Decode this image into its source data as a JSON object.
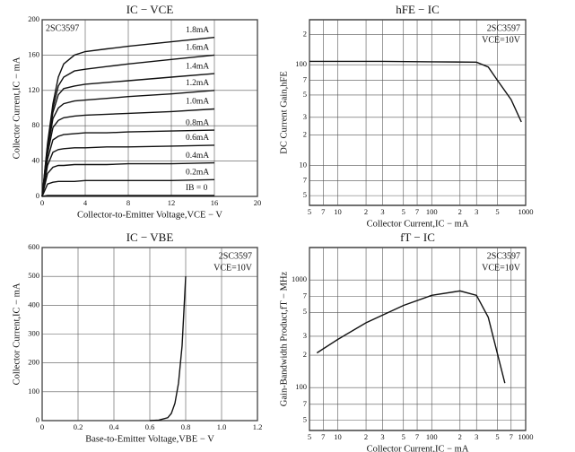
{
  "chart_data": [
    {
      "type": "line",
      "title": "IC − VCE",
      "xlabel": "Collector-to-Emitter Voltage,VCE − V",
      "ylabel": "Collector Current,IC − mA",
      "annotations": [
        "2SC3597"
      ],
      "x": [
        0,
        0.5,
        1,
        1.5,
        2,
        3,
        4,
        6,
        8,
        12,
        16
      ],
      "series": [
        {
          "name": "1.8mA",
          "color": "#111111",
          "values": [
            0,
            60,
            105,
            135,
            150,
            160,
            164,
            167,
            170,
            175,
            180
          ]
        },
        {
          "name": "1.6mA",
          "color": "#111111",
          "values": [
            0,
            58,
            100,
            125,
            135,
            142,
            144,
            147,
            150,
            155,
            160
          ]
        },
        {
          "name": "1.4mA",
          "color": "#111111",
          "values": [
            0,
            55,
            95,
            115,
            122,
            125,
            127,
            129,
            131,
            135,
            139
          ]
        },
        {
          "name": "1.2mA",
          "color": "#111111",
          "values": [
            0,
            52,
            88,
            100,
            105,
            108,
            109,
            111,
            113,
            116,
            120
          ]
        },
        {
          "name": "1.0mA",
          "color": "#111111",
          "values": [
            0,
            48,
            78,
            86,
            89,
            91,
            92,
            93,
            94,
            96,
            99
          ]
        },
        {
          "name": "0.8mA",
          "color": "#111111",
          "values": [
            0,
            42,
            64,
            68,
            70,
            71,
            72,
            72,
            73,
            74,
            75
          ]
        },
        {
          "name": "0.6mA",
          "color": "#111111",
          "values": [
            0,
            35,
            50,
            53,
            54,
            55,
            55,
            56,
            56,
            57,
            58
          ]
        },
        {
          "name": "0.4mA",
          "color": "#111111",
          "values": [
            0,
            26,
            33,
            35,
            35,
            36,
            36,
            36,
            37,
            37,
            38
          ]
        },
        {
          "name": "0.2mA",
          "color": "#111111",
          "values": [
            0,
            14,
            16,
            17,
            17,
            17,
            18,
            18,
            18,
            18,
            19
          ]
        },
        {
          "name": "IB = 0",
          "color": "#111111",
          "values": [
            0,
            1,
            1,
            1,
            1,
            1,
            1,
            1,
            1,
            1,
            1
          ]
        }
      ],
      "xlim": [
        0,
        20
      ],
      "xticks": [
        0,
        4,
        8,
        12,
        16,
        20
      ],
      "ylim": [
        0,
        200
      ],
      "yticks": [
        0,
        40,
        80,
        120,
        160,
        200
      ],
      "grid": true
    },
    {
      "type": "line",
      "title": "hFE − IC",
      "xlabel": "Collector Current,IC − mA",
      "ylabel": "DC Current Gain,hFE",
      "annotations": [
        "2SC3597",
        "VCE=10V"
      ],
      "x": [
        5,
        10,
        30,
        100,
        300,
        400,
        500,
        700,
        900
      ],
      "series": [
        {
          "name": "hFE",
          "color": "#111111",
          "values": [
            108,
            108,
            108,
            107,
            106,
            95,
            70,
            45,
            27
          ]
        }
      ],
      "xscale": "log",
      "yscale": "log",
      "xlim": [
        5,
        1000
      ],
      "xticks": [
        5,
        7,
        10,
        {
          "value": 20,
          "label": "2"
        },
        {
          "value": 30,
          "label": "3"
        },
        {
          "value": 50,
          "label": "5"
        },
        {
          "value": 70,
          "label": "7"
        },
        100,
        {
          "value": 200,
          "label": "2"
        },
        {
          "value": 300,
          "label": "3"
        },
        {
          "value": 500,
          "label": "5"
        },
        1000
      ],
      "ylim": [
        4,
        280
      ],
      "yticks": [
        5,
        7,
        10,
        {
          "value": 20,
          "label": "2"
        },
        {
          "value": 30,
          "label": "3"
        },
        {
          "value": 50,
          "label": "5"
        },
        {
          "value": 70,
          "label": "7"
        },
        100,
        {
          "value": 200,
          "label": "2"
        }
      ],
      "grid": true
    },
    {
      "type": "line",
      "title": "IC − VBE",
      "xlabel": "Base-to-Emitter Voltage,VBE − V",
      "ylabel": "Collector Current,IC − mA",
      "annotations": [
        "2SC3597",
        "VCE=10V"
      ],
      "x": [
        0.6,
        0.65,
        0.7,
        0.72,
        0.74,
        0.76,
        0.78,
        0.8
      ],
      "series": [
        {
          "name": "IC",
          "color": "#111111",
          "values": [
            0,
            2,
            10,
            25,
            60,
            130,
            260,
            500
          ]
        }
      ],
      "xlim": [
        0,
        1.2
      ],
      "xticks": [
        0,
        0.2,
        0.4,
        0.6,
        0.8,
        {
          "value": 1,
          "label": "1.0"
        },
        1.2
      ],
      "ylim": [
        0,
        600
      ],
      "yticks": [
        0,
        100,
        200,
        300,
        400,
        500,
        600
      ],
      "grid": true
    },
    {
      "type": "line",
      "title": "fT − IC",
      "xlabel": "Collector Current,IC − mA",
      "ylabel": "Gain-Bandwidth Product,fT − MHz",
      "annotations": [
        "2SC3597",
        "VCE=10V"
      ],
      "x": [
        6,
        10,
        20,
        50,
        100,
        200,
        300,
        400,
        600
      ],
      "series": [
        {
          "name": "fT",
          "color": "#111111",
          "values": [
            210,
            280,
            400,
            580,
            720,
            790,
            720,
            450,
            110
          ]
        }
      ],
      "xscale": "log",
      "yscale": "log",
      "xlim": [
        5,
        1000
      ],
      "xticks": [
        5,
        7,
        10,
        {
          "value": 20,
          "label": "2"
        },
        {
          "value": 30,
          "label": "3"
        },
        {
          "value": 50,
          "label": "5"
        },
        {
          "value": 70,
          "label": "7"
        },
        100,
        {
          "value": 200,
          "label": "2"
        },
        {
          "value": 300,
          "label": "3"
        },
        {
          "value": 500,
          "label": "5"
        },
        {
          "value": 700,
          "label": "7"
        },
        1000
      ],
      "ylim": [
        40,
        2000
      ],
      "yticks": [
        {
          "value": 50,
          "label": "5"
        },
        {
          "value": 70,
          "label": "7"
        },
        100,
        {
          "value": 200,
          "label": "2"
        },
        {
          "value": 300,
          "label": "3"
        },
        {
          "value": 500,
          "label": "5"
        },
        {
          "value": 700,
          "label": "7"
        },
        1000
      ],
      "grid": true
    }
  ]
}
